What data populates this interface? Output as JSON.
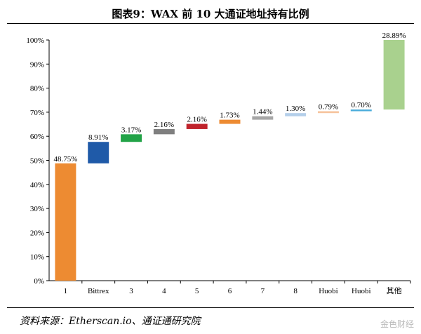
{
  "title": "图表9：WAX 前 10 大通证地址持有比例",
  "source": "资料来源：Etherscan.io、通证通研究院",
  "watermark": "金色财经",
  "chart_data": {
    "type": "bar",
    "subtype": "waterfall",
    "title": "图表9：WAX 前 10 大通证地址持有比例",
    "xlabel": "",
    "ylabel": "",
    "ylim": [
      0,
      100
    ],
    "yticks": [
      "0%",
      "10%",
      "20%",
      "30%",
      "40%",
      "50%",
      "60%",
      "70%",
      "80%",
      "90%",
      "100%"
    ],
    "grid": false,
    "categories": [
      "1",
      "Bittrex",
      "3",
      "4",
      "5",
      "6",
      "7",
      "8",
      "Huobi",
      "Huobi",
      "其他"
    ],
    "values": [
      48.75,
      8.91,
      3.17,
      2.16,
      2.16,
      1.73,
      1.44,
      1.3,
      0.79,
      0.7,
      28.89
    ],
    "labels": [
      "48.75%",
      "8.91%",
      "3.17%",
      "2.16%",
      "2.16%",
      "1.73%",
      "1.44%",
      "1.30%",
      "0.79%",
      "0.70%",
      "28.89%"
    ],
    "colors": [
      "#ED8B32",
      "#1F5AA8",
      "#22A347",
      "#7F7F7F",
      "#C0232C",
      "#ED8B32",
      "#A6A6A6",
      "#B4CFEA",
      "#F6C49E",
      "#4BACDB",
      "#A9D18E"
    ]
  }
}
